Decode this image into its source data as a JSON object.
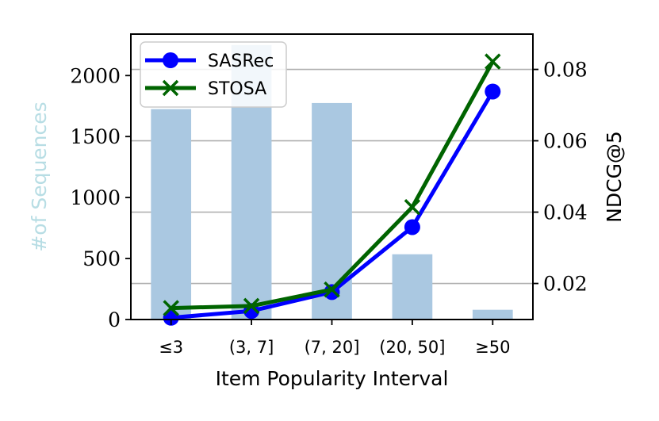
{
  "chart_data": {
    "type": "bar+line",
    "xlabel": "Item Popularity Interval",
    "categories": [
      "≤3",
      "(3, 7]",
      "(7, 20]",
      "(20, 50]",
      "≥50"
    ],
    "bars": {
      "values": [
        1725,
        2250,
        1775,
        535,
        80
      ],
      "ylabel": "#of Sequences",
      "ylim": [
        0,
        2340
      ],
      "yticks": [
        0,
        500,
        1000,
        1500,
        2000
      ],
      "color": "#aac8e1",
      "label_color": "#b7dde4"
    },
    "series": [
      {
        "name": "SASRec",
        "values": [
          0.0104,
          0.0123,
          0.0176,
          0.0358,
          0.0738
        ],
        "color": "#0000ff",
        "marker": "circle"
      },
      {
        "name": "STOSA",
        "values": [
          0.0131,
          0.0137,
          0.0183,
          0.0414,
          0.0822
        ],
        "color": "#006400",
        "marker": "x"
      }
    ],
    "y2label": "NDCG@5",
    "y2lim": [
      0.0099,
      0.0899
    ],
    "y2ticks": [
      0.02,
      0.04,
      0.06,
      0.08
    ],
    "y2tick_labels": [
      "0.02",
      "0.04",
      "0.06",
      "0.08"
    ],
    "grid": "horizontal",
    "legend_position": "top-left"
  }
}
